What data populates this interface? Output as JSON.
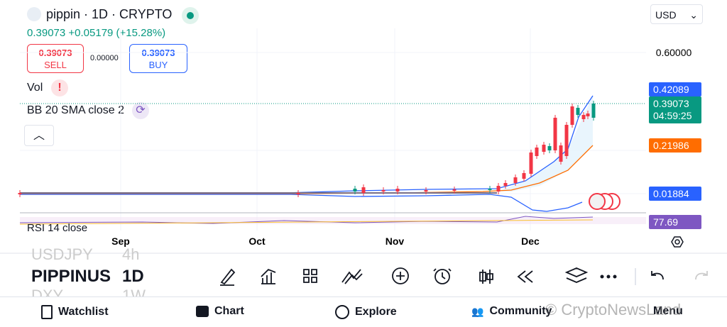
{
  "header": {
    "symbol": "pippin · 1D · CRYPTO",
    "price": "0.39073",
    "change": "+0.05179 (+15.28%)",
    "currency": "USD"
  },
  "trade": {
    "sell_price": "0.39073",
    "sell": "SELL",
    "spread": "0.00000",
    "buy_price": "0.39073",
    "buy": "BUY"
  },
  "indicators": {
    "vol": "Vol",
    "bb": "BB 20 SMA close 2",
    "rsi": "RSI 14 close"
  },
  "price_axis": {
    "top": "0.60000",
    "upper_band": "0.42089",
    "last": "0.39073",
    "countdown": "04:59:25",
    "middle_band": "0.21986",
    "lower_band": "0.01884",
    "rsi": "77.69"
  },
  "time_axis": [
    "Sep",
    "Oct",
    "Nov",
    "Dec"
  ],
  "symbols": [
    {
      "name": "USDJPY",
      "interval": "4h"
    },
    {
      "name": "PIPPINUS",
      "interval": "1D"
    },
    {
      "name": "DXY",
      "interval": "1W"
    }
  ],
  "nav": [
    "Watchlist",
    "Chart",
    "Explore",
    "Community",
    "Menu"
  ],
  "watermark": "© CryptoNewsLand"
}
